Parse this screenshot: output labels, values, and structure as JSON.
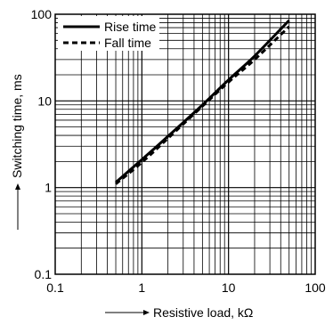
{
  "chart_data": {
    "type": "line",
    "title": "",
    "xlabel": "Resistive load, kΩ",
    "ylabel": "Switching time, ms",
    "xscale": "log",
    "yscale": "log",
    "xlim": [
      0.1,
      100
    ],
    "ylim": [
      0.1,
      100
    ],
    "grid": true,
    "legend_position": "top-left",
    "x_tick_labels": [
      "0.1",
      "1",
      "10",
      "100"
    ],
    "y_tick_labels": [
      "0.1",
      "1",
      "10",
      "100"
    ],
    "series": [
      {
        "name": "Rise time",
        "style": "solid",
        "color": "#000000",
        "x": [
          0.5,
          1,
          2,
          5,
          10,
          20,
          50
        ],
        "y": [
          1.15,
          2.1,
          3.9,
          9.0,
          17.5,
          33,
          85
        ]
      },
      {
        "name": "Fall time",
        "style": "dashed",
        "color": "#000000",
        "x": [
          0.5,
          1,
          2,
          5,
          10,
          20,
          50
        ],
        "y": [
          1.1,
          1.95,
          3.7,
          8.7,
          16.5,
          30,
          72
        ]
      }
    ]
  }
}
